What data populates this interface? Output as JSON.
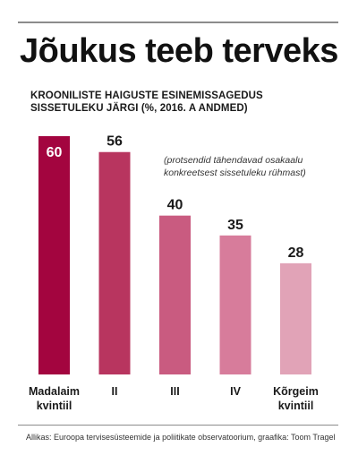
{
  "title": "Jõukus teeb terveks",
  "subtitle_lines": [
    "KROONILISTE HAIGUSTE ESINEMISSAGEDUS",
    "SISSETULEKU JÄRGI (%, 2016. A ANDMED)"
  ],
  "annotation_lines": [
    "(protsendid tähendavad osakaalu",
    "konkreetsest sissetuleku rühmast)"
  ],
  "source": "Allikas: Euroopa tervisesüsteemide ja poliitikate observatoorium, graafika: Toom Tragel",
  "chart_data": {
    "type": "bar",
    "title": "Jõukus teeb terveks",
    "subtitle": "KROONILISTE HAIGUSTE ESINEMISSAGEDUS SISSETULEKU JÄRGI (%, 2016. A ANDMED)",
    "categories": [
      [
        "Madalaim",
        "kvintiil"
      ],
      [
        "II"
      ],
      [
        "III"
      ],
      [
        "IV"
      ],
      [
        "Kõrgeim",
        "kvintiil"
      ]
    ],
    "values": [
      60,
      56,
      40,
      35,
      28
    ],
    "colors": [
      "#a3053f",
      "#b8355f",
      "#c95b80",
      "#d77c9b",
      "#e1a3b7"
    ],
    "value_label_colors": [
      "#ffffff",
      "#1a1a1a",
      "#1a1a1a",
      "#1a1a1a",
      "#1a1a1a"
    ],
    "ylim": [
      0,
      60
    ],
    "grid": false,
    "legend": "none"
  }
}
